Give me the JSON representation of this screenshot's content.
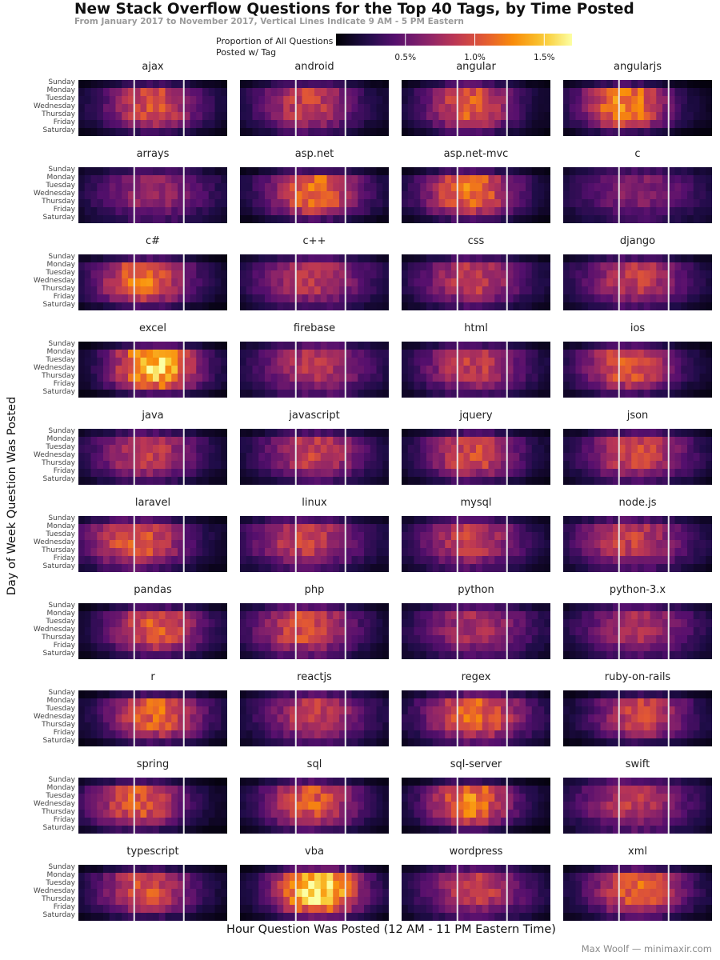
{
  "chart_data": {
    "type": "heatmap",
    "title": "New Stack Overflow Questions for the Top 40 Tags, by Time Posted",
    "subtitle": "From January 2017 to November 2017, Vertical Lines Indicate 9 AM - 5 PM Eastern",
    "xlabel": "Hour Question Was Posted (12 AM - 11 PM Eastern Time)",
    "ylabel": "Day of Week Question Was Posted",
    "legend": {
      "title_line1": "Proportion of All Questions",
      "title_line2": "Posted w/ Tag",
      "ticks": [
        "0.5%",
        "1.0%",
        "1.5%"
      ],
      "tick_values": [
        0.5,
        1.0,
        1.5
      ],
      "range": [
        0.0,
        1.7
      ],
      "placement": "top"
    },
    "days": [
      "Sunday",
      "Monday",
      "Tuesday",
      "Wednesday",
      "Thursday",
      "Friday",
      "Saturday"
    ],
    "hours": [
      0,
      1,
      2,
      3,
      4,
      5,
      6,
      7,
      8,
      9,
      10,
      11,
      12,
      13,
      14,
      15,
      16,
      17,
      18,
      19,
      20,
      21,
      22,
      23
    ],
    "reference_lines_hours": [
      9,
      17
    ],
    "colormap": "inferno",
    "grid": false,
    "facets": [
      {
        "tag": "ajax",
        "peak": 0.95,
        "peak_hour": 11.5,
        "spread": 5.5,
        "sat": 0.35
      },
      {
        "tag": "android",
        "peak": 0.9,
        "peak_hour": 10.5,
        "spread": 5.5,
        "sat": 0.45
      },
      {
        "tag": "angular",
        "peak": 1.05,
        "peak_hour": 10.5,
        "spread": 5.0,
        "sat": 0.4
      },
      {
        "tag": "angularjs",
        "peak": 1.2,
        "peak_hour": 9.5,
        "spread": 5.0,
        "sat": 0.3
      },
      {
        "tag": "arrays",
        "peak": 0.7,
        "peak_hour": 11.5,
        "spread": 6.5,
        "sat": 0.55
      },
      {
        "tag": "asp.net",
        "peak": 1.1,
        "peak_hour": 11.5,
        "spread": 5.5,
        "sat": 0.35
      },
      {
        "tag": "asp.net-mvc",
        "peak": 1.1,
        "peak_hour": 10.5,
        "spread": 5.5,
        "sat": 0.35
      },
      {
        "tag": "c",
        "peak": 0.6,
        "peak_hour": 11.5,
        "spread": 7.0,
        "sat": 0.6
      },
      {
        "tag": "c#",
        "peak": 1.1,
        "peak_hour": 10.0,
        "spread": 5.5,
        "sat": 0.35
      },
      {
        "tag": "c++",
        "peak": 0.8,
        "peak_hour": 11.0,
        "spread": 6.5,
        "sat": 0.5
      },
      {
        "tag": "css",
        "peak": 0.85,
        "peak_hour": 11.0,
        "spread": 6.0,
        "sat": 0.45
      },
      {
        "tag": "django",
        "peak": 0.85,
        "peak_hour": 11.0,
        "spread": 6.0,
        "sat": 0.45
      },
      {
        "tag": "excel",
        "peak": 1.45,
        "peak_hour": 12.0,
        "spread": 5.0,
        "sat": 0.3
      },
      {
        "tag": "firebase",
        "peak": 0.8,
        "peak_hour": 11.5,
        "spread": 6.5,
        "sat": 0.55
      },
      {
        "tag": "html",
        "peak": 0.85,
        "peak_hour": 11.0,
        "spread": 6.0,
        "sat": 0.45
      },
      {
        "tag": "ios",
        "peak": 1.0,
        "peak_hour": 10.0,
        "spread": 5.5,
        "sat": 0.4
      },
      {
        "tag": "java",
        "peak": 0.85,
        "peak_hour": 10.5,
        "spread": 6.0,
        "sat": 0.45
      },
      {
        "tag": "javascript",
        "peak": 0.85,
        "peak_hour": 11.5,
        "spread": 6.0,
        "sat": 0.45
      },
      {
        "tag": "jquery",
        "peak": 0.95,
        "peak_hour": 11.0,
        "spread": 5.5,
        "sat": 0.4
      },
      {
        "tag": "json",
        "peak": 0.9,
        "peak_hour": 11.5,
        "spread": 6.0,
        "sat": 0.45
      },
      {
        "tag": "laravel",
        "peak": 1.0,
        "peak_hour": 9.0,
        "spread": 6.0,
        "sat": 0.45
      },
      {
        "tag": "linux",
        "peak": 0.85,
        "peak_hour": 10.0,
        "spread": 6.5,
        "sat": 0.5
      },
      {
        "tag": "mysql",
        "peak": 0.85,
        "peak_hour": 10.5,
        "spread": 6.0,
        "sat": 0.5
      },
      {
        "tag": "node.js",
        "peak": 0.85,
        "peak_hour": 10.5,
        "spread": 6.5,
        "sat": 0.5
      },
      {
        "tag": "pandas",
        "peak": 1.0,
        "peak_hour": 12.0,
        "spread": 5.5,
        "sat": 0.4
      },
      {
        "tag": "php",
        "peak": 0.95,
        "peak_hour": 10.0,
        "spread": 6.0,
        "sat": 0.5
      },
      {
        "tag": "python",
        "peak": 0.75,
        "peak_hour": 11.5,
        "spread": 6.5,
        "sat": 0.55
      },
      {
        "tag": "python-3.x",
        "peak": 0.75,
        "peak_hour": 11.5,
        "spread": 6.5,
        "sat": 0.55
      },
      {
        "tag": "r",
        "peak": 1.05,
        "peak_hour": 12.0,
        "spread": 5.5,
        "sat": 0.35
      },
      {
        "tag": "reactjs",
        "peak": 0.85,
        "peak_hour": 11.5,
        "spread": 6.0,
        "sat": 0.5
      },
      {
        "tag": "regex",
        "peak": 1.05,
        "peak_hour": 11.5,
        "spread": 6.0,
        "sat": 0.45
      },
      {
        "tag": "ruby-on-rails",
        "peak": 0.9,
        "peak_hour": 12.0,
        "spread": 5.5,
        "sat": 0.35
      },
      {
        "tag": "spring",
        "peak": 1.0,
        "peak_hour": 9.0,
        "spread": 5.5,
        "sat": 0.35
      },
      {
        "tag": "sql",
        "peak": 1.0,
        "peak_hour": 11.0,
        "spread": 5.5,
        "sat": 0.4
      },
      {
        "tag": "sql-server",
        "peak": 1.15,
        "peak_hour": 10.5,
        "spread": 5.0,
        "sat": 0.3
      },
      {
        "tag": "swift",
        "peak": 0.8,
        "peak_hour": 11.0,
        "spread": 6.5,
        "sat": 0.55
      },
      {
        "tag": "typescript",
        "peak": 0.95,
        "peak_hour": 10.5,
        "spread": 5.5,
        "sat": 0.35
      },
      {
        "tag": "vba",
        "peak": 1.55,
        "peak_hour": 12.0,
        "spread": 5.0,
        "sat": 0.35
      },
      {
        "tag": "wordpress",
        "peak": 0.85,
        "peak_hour": 11.5,
        "spread": 6.0,
        "sat": 0.5
      },
      {
        "tag": "xml",
        "peak": 1.05,
        "peak_hour": 11.5,
        "spread": 5.5,
        "sat": 0.4
      }
    ]
  },
  "credit": "Max Woolf — minimaxir.com"
}
